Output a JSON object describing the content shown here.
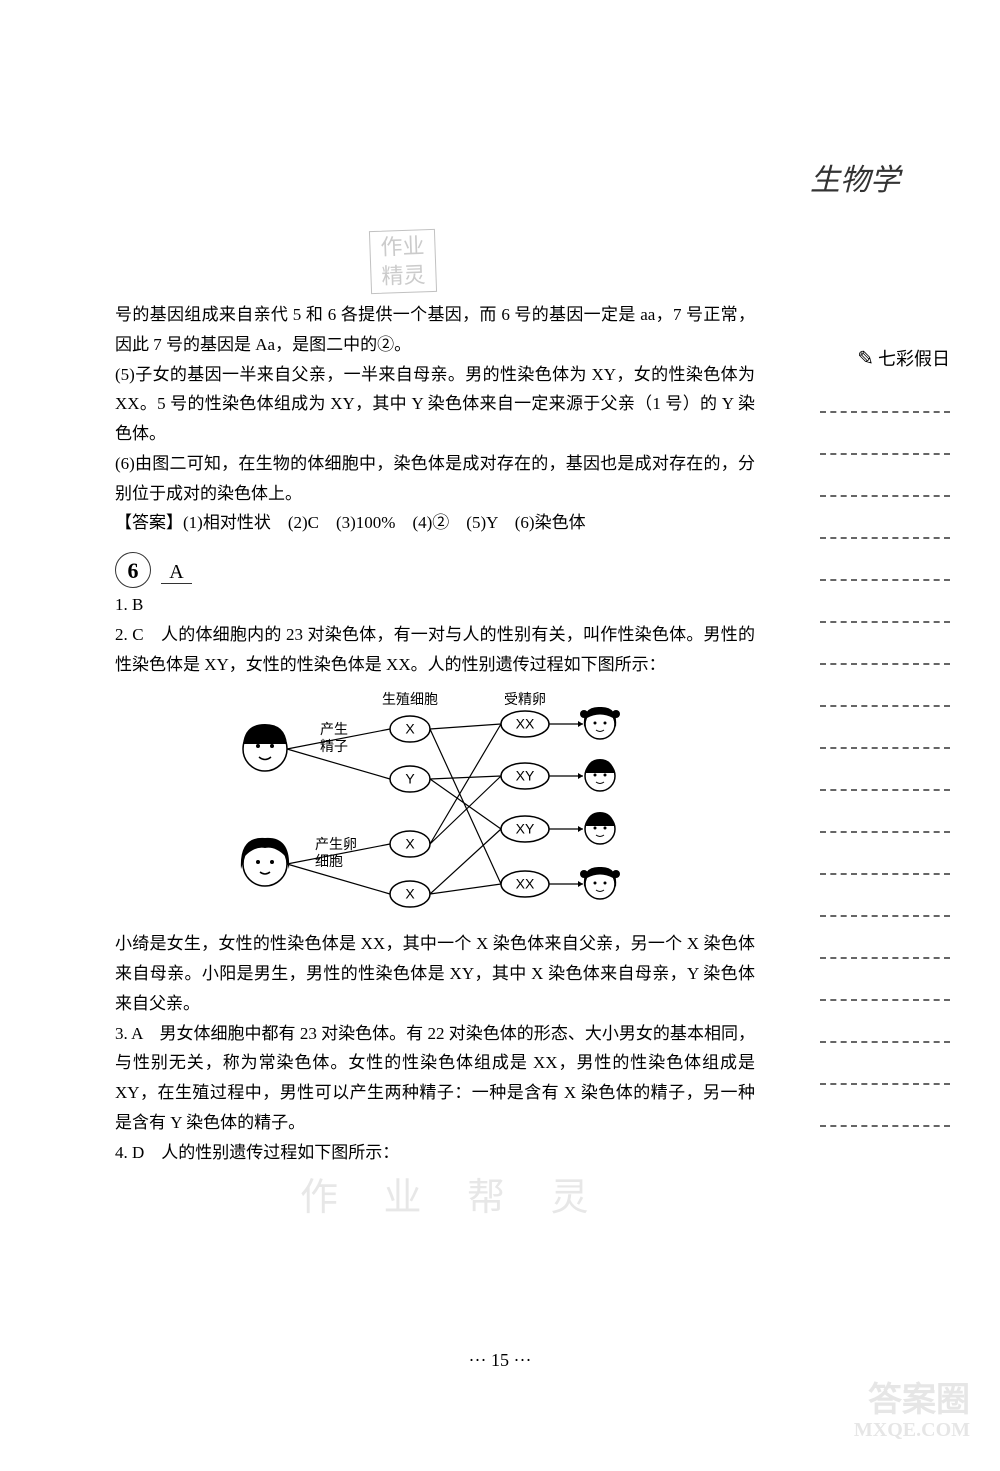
{
  "header": {
    "subject": "生物学",
    "watermark_top_line1": "作业",
    "watermark_top_line2": "精灵"
  },
  "sidebar": {
    "label": "七彩假日",
    "dash_count": 18
  },
  "content": {
    "p1": "号的基因组成来自亲代 5 和 6 各提供一个基因，而 6 号的基因一定是 aa，7 号正常，因此 7 号的基因是 Aa，是图二中的②。",
    "p2": "(5)子女的基因一半来自父亲，一半来自母亲。男的性染色体为 XY，女的性染色体为 XX。5 号的性染色体组成为 XY，其中 Y 染色体来自一定来源于父亲（1 号）的 Y 染色体。",
    "p3": "(6)由图二可知，在生物的体细胞中，染色体是成对存在的，基因也是成对存在的，分别位于成对的染色体上。",
    "p4": "【答案】(1)相对性状　(2)C　(3)100%　(4)②　(5)Y　(6)染色体",
    "section_num": "6",
    "section_letter": "A",
    "q1": "1. B",
    "q2": "2. C　人的体细胞内的 23 对染色体，有一对与人的性别有关，叫作性染色体。男性的性染色体是 XY，女性的性染色体是 XX。人的性别遗传过程如下图所示：",
    "q2b": "小绮是女生，女性的性染色体是 XX，其中一个 X 染色体来自父亲，另一个 X 染色体来自母亲。小阳是男生，男性的性染色体是 XY，其中 X 染色体来自母亲，Y 染色体来自父亲。",
    "q3": "3. A　男女体细胞中都有 23 对染色体。有 22 对染色体的形态、大小男女的基本相同，与性别无关，称为常染色体。女性的性染色体组成是 XX，男性的性染色体组成是 XY，在生殖过程中，男性可以产生两种精子：一种是含有 X 染色体的精子，另一种是含有 Y 染色体的精子。",
    "q4": "4. D　人的性别遗传过程如下图所示："
  },
  "diagram": {
    "header_gamete": "生殖细胞",
    "header_zygote": "受精卵",
    "male_label1": "产生",
    "male_label2": "精子",
    "female_label1": "产生卵",
    "female_label2": "细胞",
    "gametes": [
      "X",
      "Y",
      "X",
      "X"
    ],
    "zygotes": [
      "XX",
      "XY",
      "XY",
      "XX"
    ],
    "colors": {
      "line": "#000000",
      "bg": "#ffffff"
    }
  },
  "footer": {
    "page": "··· 15 ···",
    "watermark_bottom": "作 业 帮 灵",
    "corner1": "答案圈",
    "corner2": "MXQE.COM"
  }
}
